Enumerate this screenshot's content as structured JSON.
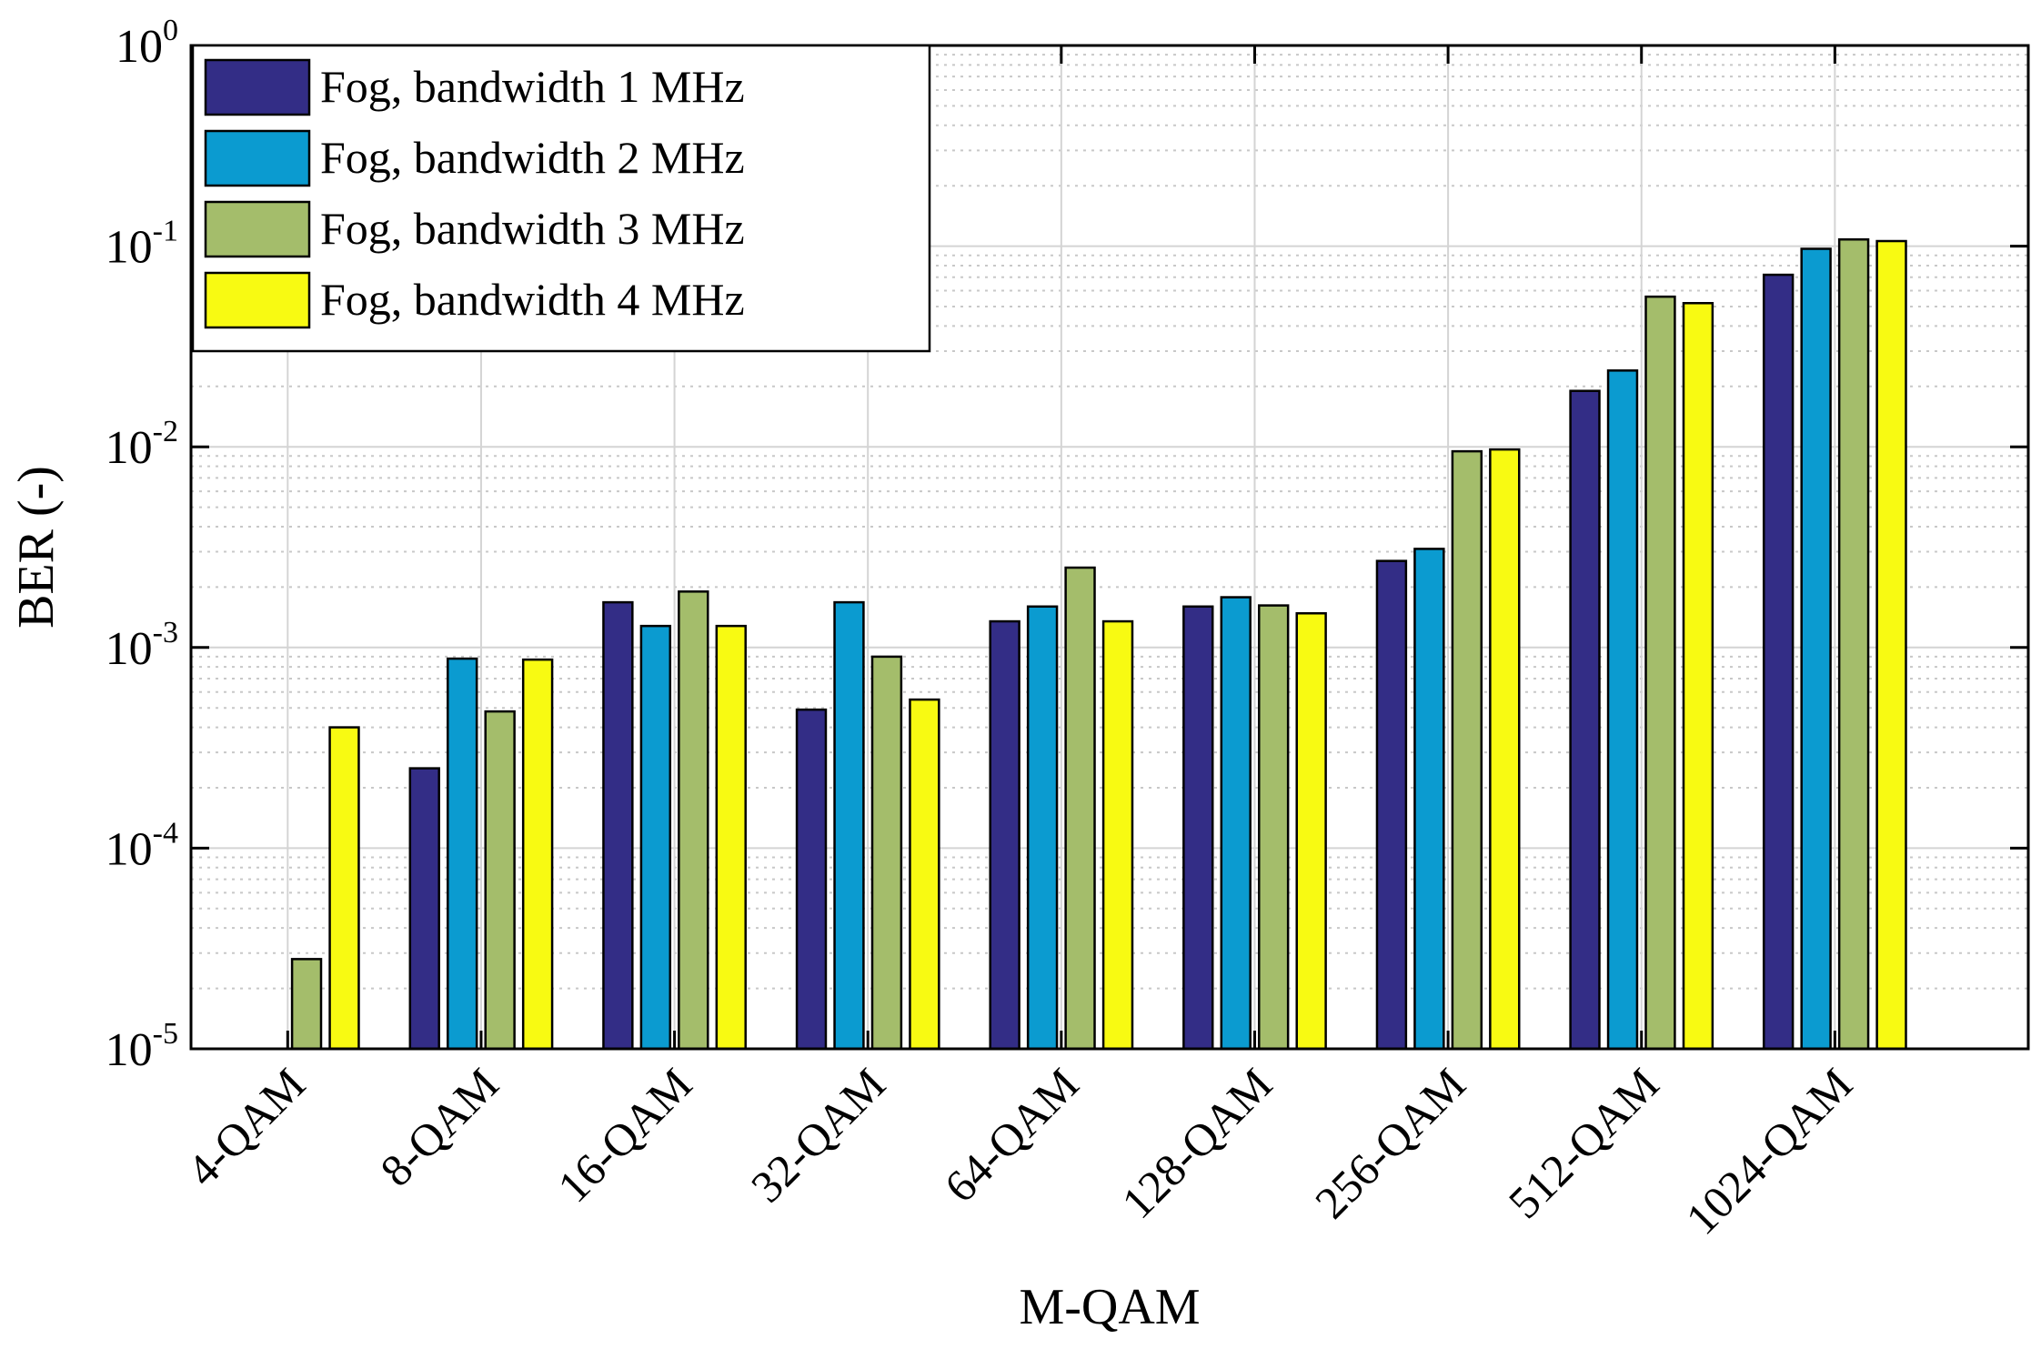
{
  "chart_data": {
    "type": "bar",
    "title": "",
    "xlabel": "M-QAM",
    "ylabel": "BER (-)",
    "yscale": "log",
    "ylim": [
      1e-05,
      1
    ],
    "y_ticks": [
      {
        "value": 1e-05,
        "base": "10",
        "exp": "-5"
      },
      {
        "value": 0.0001,
        "base": "10",
        "exp": "-4"
      },
      {
        "value": 0.001,
        "base": "10",
        "exp": "-3"
      },
      {
        "value": 0.01,
        "base": "10",
        "exp": "-2"
      },
      {
        "value": 0.1,
        "base": "10",
        "exp": "-1"
      },
      {
        "value": 1,
        "base": "10",
        "exp": "0"
      }
    ],
    "grid": true,
    "legend_position": "top-left",
    "categories": [
      "4-QAM",
      "8-QAM",
      "16-QAM",
      "32-QAM",
      "64-QAM",
      "128-QAM",
      "256-QAM",
      "512-QAM",
      "1024-QAM"
    ],
    "series": [
      {
        "name": "Fog, bandwidth 1 MHz",
        "color": "#332d86",
        "values": [
          null,
          0.00025,
          0.00168,
          0.00049,
          0.00135,
          0.0016,
          0.0027,
          0.019,
          0.072
        ]
      },
      {
        "name": "Fog, bandwidth 2 MHz",
        "color": "#0b9bd0",
        "values": [
          null,
          0.00088,
          0.00128,
          0.00168,
          0.0016,
          0.00178,
          0.0031,
          0.024,
          0.097
        ]
      },
      {
        "name": "Fog, bandwidth 3 MHz",
        "color": "#a4bd6b",
        "values": [
          2.8e-05,
          0.00048,
          0.0019,
          0.0009,
          0.0025,
          0.00162,
          0.0095,
          0.056,
          0.108
        ]
      },
      {
        "name": "Fog, bandwidth 4 MHz",
        "color": "#f8fa12",
        "values": [
          0.0004,
          0.00087,
          0.00128,
          0.00055,
          0.00135,
          0.00148,
          0.0097,
          0.052,
          0.106
        ]
      }
    ]
  }
}
